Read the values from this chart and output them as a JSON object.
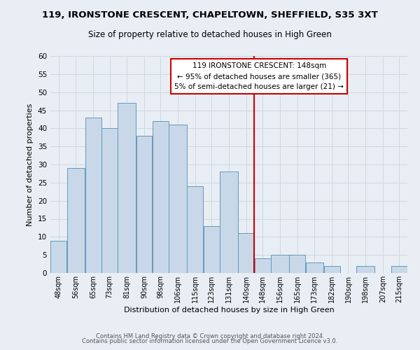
{
  "title": "119, IRONSTONE CRESCENT, CHAPELTOWN, SHEFFIELD, S35 3XT",
  "subtitle": "Size of property relative to detached houses in High Green",
  "xlabel": "Distribution of detached houses by size in High Green",
  "ylabel": "Number of detached properties",
  "bin_labels": [
    "48sqm",
    "56sqm",
    "65sqm",
    "73sqm",
    "81sqm",
    "90sqm",
    "98sqm",
    "106sqm",
    "115sqm",
    "123sqm",
    "131sqm",
    "140sqm",
    "148sqm",
    "156sqm",
    "165sqm",
    "173sqm",
    "182sqm",
    "190sqm",
    "198sqm",
    "207sqm",
    "215sqm"
  ],
  "bin_edges": [
    48,
    56,
    65,
    73,
    81,
    90,
    98,
    106,
    115,
    123,
    131,
    140,
    148,
    156,
    165,
    173,
    182,
    190,
    198,
    207,
    215,
    223
  ],
  "counts": [
    9,
    29,
    43,
    40,
    47,
    38,
    42,
    41,
    24,
    13,
    28,
    11,
    4,
    5,
    5,
    3,
    2,
    0,
    2,
    0,
    2
  ],
  "bar_fill": "#c8d8e8",
  "bar_edge": "#6699bb",
  "vline_x": 148,
  "vline_color": "#cc0000",
  "annotation_lines": [
    "119 IRONSTONE CRESCENT: 148sqm",
    "← 95% of detached houses are smaller (365)",
    "5% of semi-detached houses are larger (21) →"
  ],
  "annotation_box_color": "#cc0000",
  "ylim": [
    0,
    60
  ],
  "yticks": [
    0,
    5,
    10,
    15,
    20,
    25,
    30,
    35,
    40,
    45,
    50,
    55,
    60
  ],
  "grid_color": "#d0d8e0",
  "bg_color": "#e8eef4",
  "footer_line1": "Contains HM Land Registry data © Crown copyright and database right 2024.",
  "footer_line2": "Contains public sector information licensed under the Open Government Licence v3.0."
}
